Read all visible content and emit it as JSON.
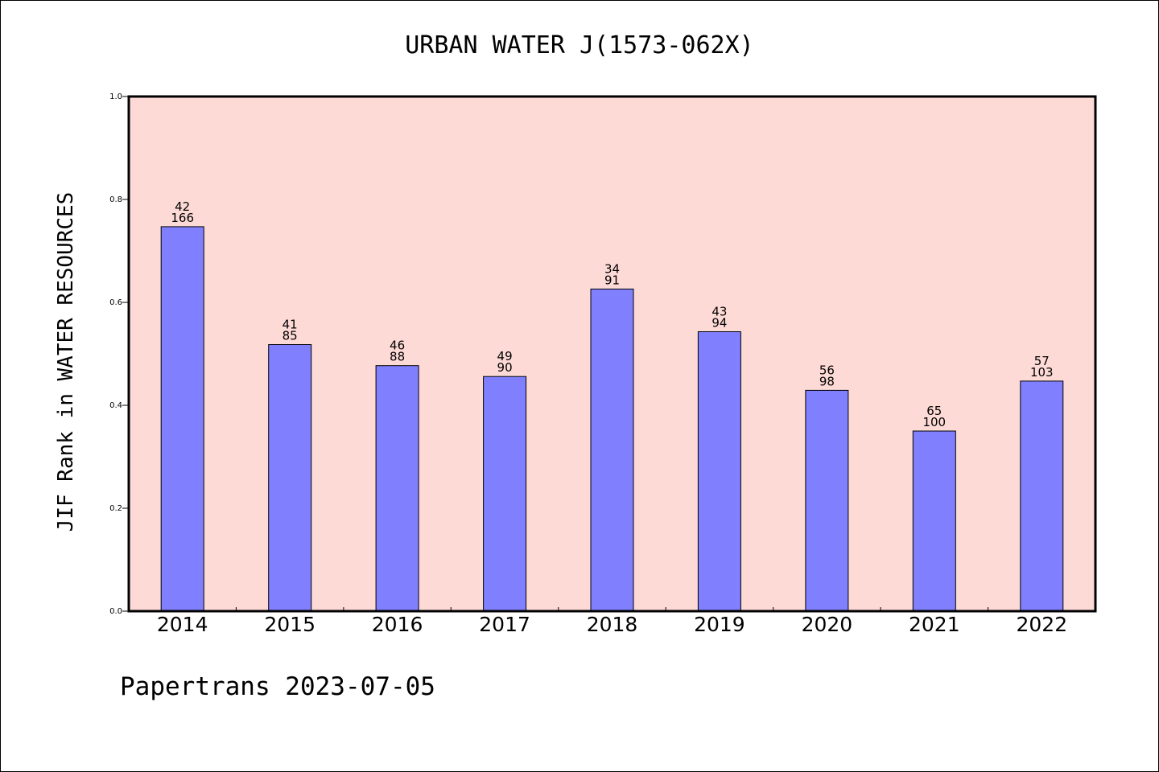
{
  "chart_data": {
    "type": "bar",
    "title": "URBAN WATER J(1573-062X)",
    "xlabel": "",
    "ylabel": "JIF Rank in WATER RESOURCES",
    "ylim": [
      0,
      1.0
    ],
    "yticks": [
      "0.0",
      "0.2",
      "0.4",
      "0.6",
      "0.8",
      "1.0"
    ],
    "categories": [
      "2014",
      "2015",
      "2016",
      "2017",
      "2018",
      "2019",
      "2020",
      "2021",
      "2022"
    ],
    "values": [
      0.747,
      0.518,
      0.477,
      0.456,
      0.626,
      0.543,
      0.429,
      0.35,
      0.447
    ],
    "labels_top": [
      "42",
      "41",
      "46",
      "49",
      "34",
      "43",
      "56",
      "65",
      "57"
    ],
    "labels_bottom": [
      "166",
      "85",
      "88",
      "90",
      "91",
      "94",
      "98",
      "100",
      "103"
    ],
    "grid": false,
    "bar_color": "#8080ff",
    "plot_background": "#fddad6"
  },
  "footer": {
    "text": "Papertrans 2023-07-05"
  }
}
